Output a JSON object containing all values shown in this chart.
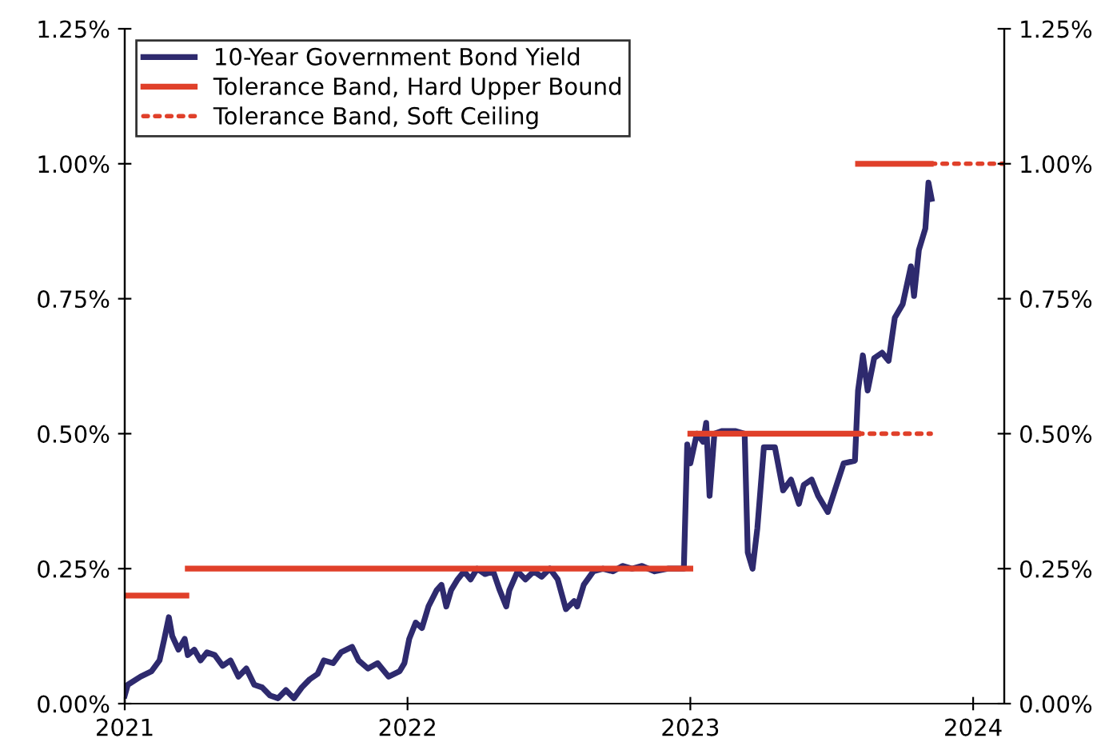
{
  "chart_data": {
    "type": "line",
    "legend": "top left",
    "grid": false,
    "marker": "none",
    "xlim": [
      2021,
      2024.11
    ],
    "xticks": [
      2021,
      2022,
      2023,
      2024
    ],
    "ylim": [
      0,
      1.25
    ],
    "yticks": [
      {
        "value": 0,
        "label": "0.00%"
      },
      {
        "value": 0.25,
        "label": "0.25%"
      },
      {
        "value": 0.5,
        "label": "0.50%"
      },
      {
        "value": 0.75,
        "label": "0.75%"
      },
      {
        "value": 1.0,
        "label": "1.00%"
      },
      {
        "value": 1.25,
        "label": "1.25%"
      }
    ],
    "y2lim": [
      0,
      1.25
    ],
    "y2ticks": [
      {
        "value": 0,
        "label": "0.00%"
      },
      {
        "value": 0.25,
        "label": "0.25%"
      },
      {
        "value": 0.5,
        "label": "0.50%"
      },
      {
        "value": 0.75,
        "label": "0.75%"
      },
      {
        "value": 1.0,
        "label": "1.00%"
      },
      {
        "value": 1.25,
        "label": "1.25%"
      }
    ],
    "series": [
      {
        "name": "10-Year Government Bond Yield",
        "color": "#2e2a6e",
        "line_style": "solid",
        "x": [
          2021.0,
          2021.011,
          2021.056,
          2021.095,
          2021.123,
          2021.14,
          2021.156,
          2021.168,
          2021.19,
          2021.212,
          2021.223,
          2021.246,
          2021.268,
          2021.291,
          2021.318,
          2021.346,
          2021.374,
          2021.402,
          2021.43,
          2021.458,
          2021.486,
          2021.514,
          2021.542,
          2021.57,
          2021.598,
          2021.626,
          2021.654,
          2021.682,
          2021.704,
          2021.737,
          2021.765,
          2021.804,
          2021.827,
          2021.86,
          2021.894,
          2021.933,
          2021.972,
          2021.989,
          2022.006,
          2022.029,
          2022.051,
          2022.074,
          2022.103,
          2022.12,
          2022.137,
          2022.154,
          2022.177,
          2022.2,
          2022.223,
          2022.246,
          2022.274,
          2022.303,
          2022.326,
          2022.349,
          2022.36,
          2022.389,
          2022.417,
          2022.446,
          2022.474,
          2022.503,
          2022.531,
          2022.56,
          2022.589,
          2022.6,
          2022.623,
          2022.657,
          2022.691,
          2022.726,
          2022.76,
          2022.794,
          2022.829,
          2022.874,
          2022.92,
          2022.977,
          2022.989,
          2023.0,
          2023.023,
          2023.045,
          2023.056,
          2023.068,
          2023.085,
          2023.113,
          2023.158,
          2023.192,
          2023.203,
          2023.22,
          2023.237,
          2023.26,
          2023.299,
          2023.328,
          2023.356,
          2023.384,
          2023.401,
          2023.429,
          2023.452,
          2023.486,
          2023.514,
          2023.542,
          2023.582,
          2023.593,
          2023.61,
          2023.627,
          2023.65,
          2023.678,
          2023.701,
          2023.723,
          2023.751,
          2023.78,
          2023.791,
          2023.808,
          2023.831,
          2023.842,
          2023.853
        ],
        "values": [
          0.015,
          0.035,
          0.05,
          0.06,
          0.08,
          0.12,
          0.16,
          0.125,
          0.1,
          0.12,
          0.09,
          0.1,
          0.08,
          0.095,
          0.09,
          0.07,
          0.08,
          0.05,
          0.065,
          0.035,
          0.03,
          0.015,
          0.01,
          0.025,
          0.01,
          0.03,
          0.045,
          0.055,
          0.08,
          0.075,
          0.095,
          0.105,
          0.08,
          0.065,
          0.075,
          0.05,
          0.06,
          0.075,
          0.12,
          0.15,
          0.14,
          0.18,
          0.21,
          0.22,
          0.18,
          0.21,
          0.23,
          0.245,
          0.23,
          0.25,
          0.24,
          0.245,
          0.21,
          0.18,
          0.21,
          0.245,
          0.23,
          0.245,
          0.235,
          0.25,
          0.23,
          0.175,
          0.19,
          0.18,
          0.22,
          0.245,
          0.25,
          0.245,
          0.255,
          0.25,
          0.255,
          0.245,
          0.25,
          0.25,
          0.48,
          0.445,
          0.5,
          0.485,
          0.52,
          0.385,
          0.5,
          0.505,
          0.505,
          0.5,
          0.28,
          0.25,
          0.325,
          0.475,
          0.475,
          0.395,
          0.415,
          0.37,
          0.405,
          0.415,
          0.385,
          0.355,
          0.4,
          0.445,
          0.45,
          0.58,
          0.645,
          0.58,
          0.64,
          0.65,
          0.635,
          0.715,
          0.74,
          0.81,
          0.755,
          0.84,
          0.88,
          0.965,
          0.935
        ]
      },
      {
        "name": "Tolerance Band, Hard Upper Bound",
        "color": "#e0402a",
        "line_style": "solid",
        "x": [
          2021.0,
          2021.218,
          null,
          2021.223,
          2023.0,
          null,
          2023.0,
          2023.593,
          null,
          2023.593,
          2023.85
        ],
        "values": [
          0.2,
          0.2,
          null,
          0.25,
          0.25,
          null,
          0.5,
          0.5,
          null,
          1.0,
          1.0
        ]
      },
      {
        "name": "Tolerance Band, Soft Ceiling",
        "color": "#e0402a",
        "line_style": "dotted",
        "x": [
          2023.593,
          2023.85,
          null,
          2023.85,
          2024.11
        ],
        "values": [
          0.5,
          0.5,
          null,
          1.0,
          1.0
        ]
      }
    ]
  }
}
